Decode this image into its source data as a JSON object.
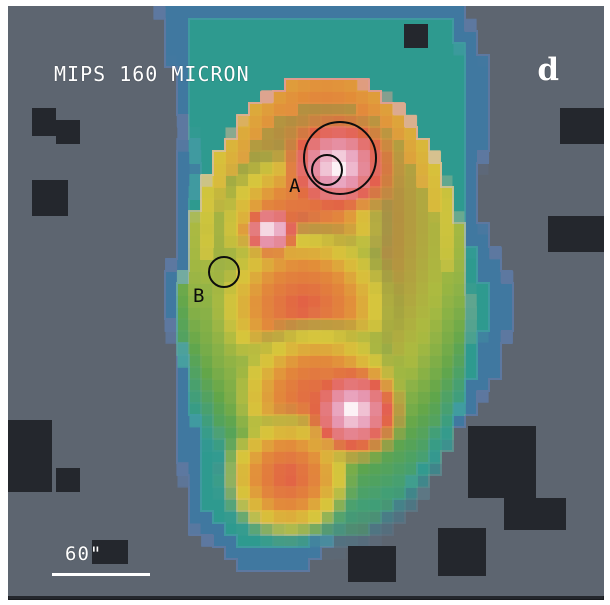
{
  "image": {
    "title": "MIPS 160 MICRON",
    "panel_letter": "d",
    "source_labels": {
      "a": "A",
      "b": "B"
    },
    "scale_bar": {
      "label": "60\""
    }
  },
  "colors": {
    "frame": "#24272d",
    "background_gray": "#5d6570",
    "blue": "#3f78a0",
    "teal": "#2f9a8f",
    "green": "#5ea54b",
    "yellow": "#d5c53b",
    "orange": "#e28a39",
    "red": "#e25b46",
    "pink": "#e69ab7",
    "white": "#ffffff",
    "black": "#0d0d0d"
  }
}
